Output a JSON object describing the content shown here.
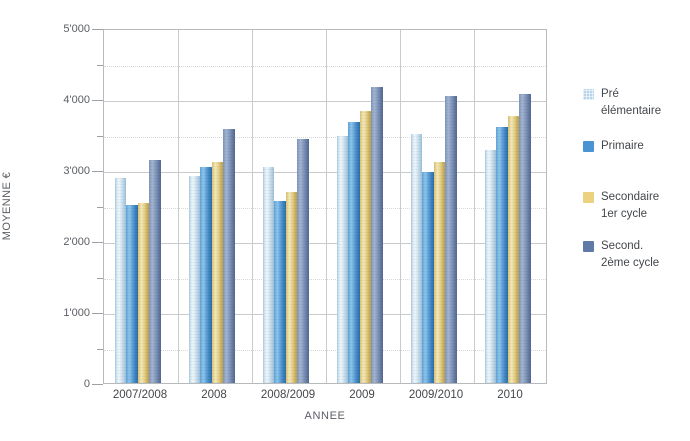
{
  "chart_data": {
    "type": "bar",
    "title": "",
    "xlabel": "ANNEE",
    "ylabel": "MOYENNE €",
    "ylim": [
      0,
      5000
    ],
    "ytick_interval": 1000,
    "minor_tick_interval": 500,
    "ytick_labels": [
      "0",
      "1'000",
      "2'000",
      "3'000",
      "4'000",
      "5'000"
    ],
    "grid": true,
    "legend_position": "right",
    "categories": [
      "2007/2008",
      "2008",
      "2008/2009",
      "2009",
      "2009/2010",
      "2010"
    ],
    "series": [
      {
        "name": "Pré élémentaire",
        "legend_lines": [
          "Pré",
          "élémentaire"
        ],
        "color": "#b8d4ea",
        "values": [
          2900,
          2930,
          3050,
          3500,
          3520,
          3300
        ]
      },
      {
        "name": "Primaire",
        "legend_lines": [
          "Primaire"
        ],
        "color": "#4a94d4",
        "values": [
          2520,
          3050,
          2580,
          3690,
          2980,
          3620
        ]
      },
      {
        "name": "Secondaire 1er cycle",
        "legend_lines": [
          "Secondaire",
          "1er cycle"
        ],
        "color": "#ecd17f",
        "values": [
          2550,
          3120,
          2700,
          3850,
          3120,
          3780
        ]
      },
      {
        "name": "Second. 2ème cycle",
        "legend_lines": [
          "Second.",
          "2ème cycle"
        ],
        "color": "#5f7aa6",
        "values": [
          3150,
          3590,
          3450,
          4190,
          4060,
          4080
        ]
      }
    ]
  }
}
